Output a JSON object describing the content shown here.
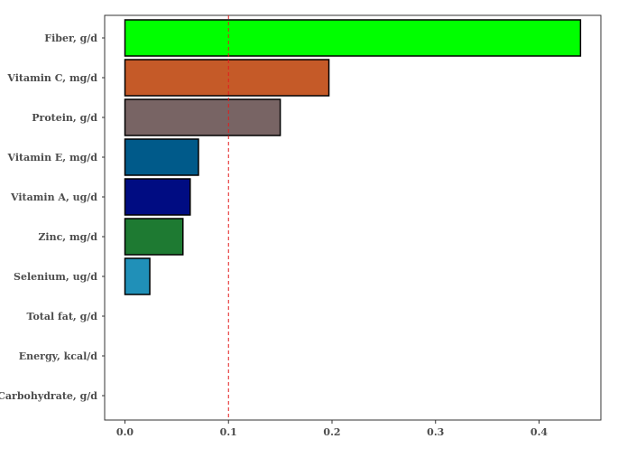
{
  "chart_data": {
    "type": "bar",
    "orientation": "horizontal",
    "categories": [
      "Fiber, g/d",
      "Vitamin C, mg/d",
      "Protein, g/d",
      "Vitamin E, mg/d",
      "Vitamin A, ug/d",
      "Zinc, mg/d",
      "Selenium, ug/d",
      "Total fat, g/d",
      "Energy, kcal/d",
      "Carbohydrate, g/d"
    ],
    "values": [
      0.44,
      0.197,
      0.15,
      0.071,
      0.063,
      0.056,
      0.024,
      0.0,
      0.0,
      0.0
    ],
    "colors": [
      "#00ff00",
      "#c55a28",
      "#786464",
      "#005a8a",
      "#000c82",
      "#1e7a32",
      "#2090b8",
      "#ffffff",
      "#ffffff",
      "#ffffff"
    ],
    "xticks": [
      0.0,
      0.1,
      0.2,
      0.3,
      0.4
    ],
    "xtick_labels": [
      "0.0",
      "0.1",
      "0.2",
      "0.3",
      "0.4"
    ],
    "xlim": [
      -0.019,
      0.46
    ],
    "reference_line": {
      "x": 0.1,
      "color": "#e41a1c",
      "style": "dashed"
    },
    "title": "",
    "xlabel": "",
    "ylabel": "",
    "grid": false,
    "legend": "none"
  }
}
